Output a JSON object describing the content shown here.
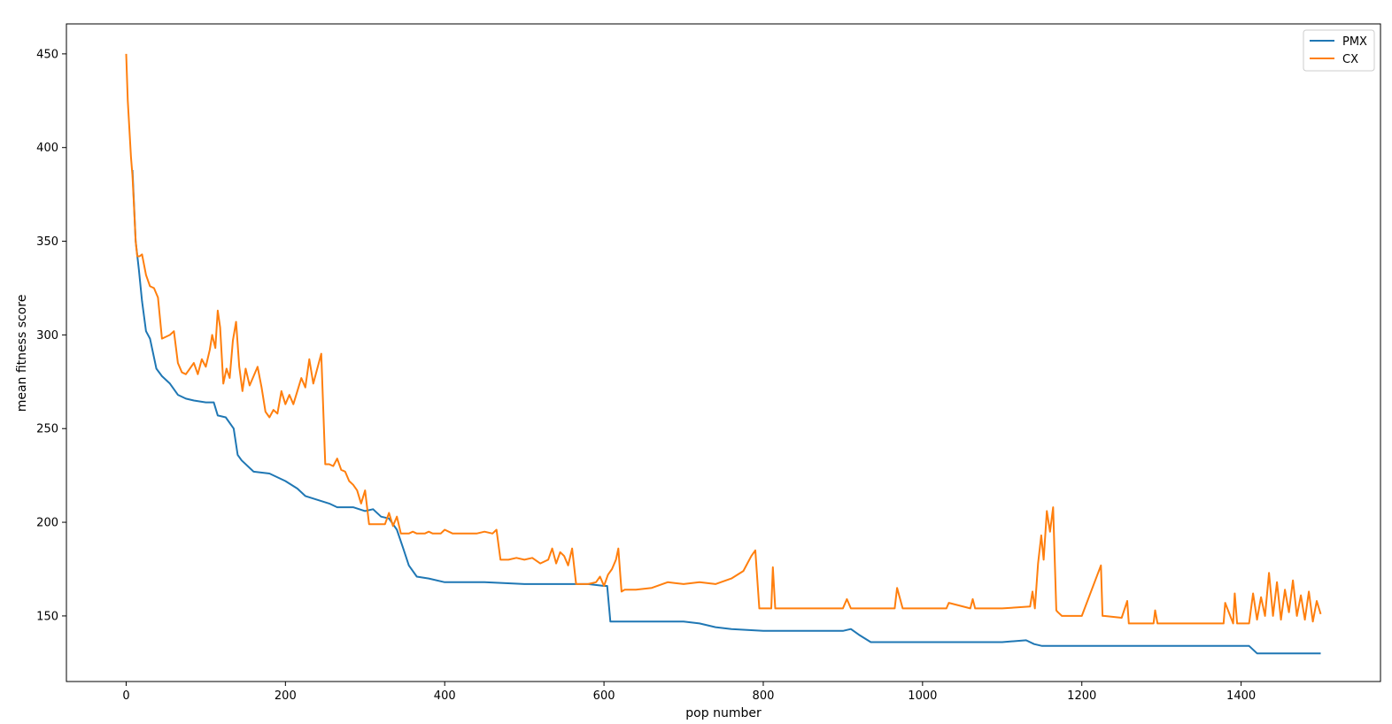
{
  "chart_data": {
    "type": "line",
    "xlabel": "pop number",
    "ylabel": "mean fitness score",
    "xlim": [
      -75,
      1575
    ],
    "ylim": [
      115,
      466
    ],
    "xticks": [
      0,
      200,
      400,
      600,
      800,
      1000,
      1200,
      1400
    ],
    "yticks": [
      150,
      200,
      250,
      300,
      350,
      400,
      450
    ],
    "grid": false,
    "legend": "top-right",
    "colors": {
      "PMX": "#1f77b4",
      "CX": "#ff7f0e"
    },
    "series": [
      {
        "name": "PMX",
        "x": [
          8,
          12,
          16,
          20,
          25,
          30,
          38,
          45,
          55,
          65,
          75,
          85,
          100,
          110,
          115,
          125,
          135,
          140,
          145,
          160,
          180,
          200,
          215,
          225,
          240,
          255,
          265,
          285,
          300,
          310,
          320,
          330,
          340,
          348,
          355,
          365,
          380,
          400,
          450,
          500,
          550,
          580,
          600,
          604,
          608,
          640,
          700,
          720,
          740,
          760,
          800,
          850,
          900,
          910,
          920,
          935,
          950,
          1000,
          1050,
          1100,
          1130,
          1140,
          1150,
          1200,
          1250,
          1300,
          1350,
          1400,
          1410,
          1420,
          1450,
          1500
        ],
        "y": [
          388,
          350,
          335,
          318,
          302,
          298,
          282,
          278,
          274,
          268,
          266,
          265,
          264,
          264,
          257,
          256,
          250,
          236,
          233,
          227,
          226,
          222,
          218,
          214,
          212,
          210,
          208,
          208,
          206,
          207,
          203,
          202,
          196,
          186,
          177,
          171,
          170,
          168,
          168,
          167,
          167,
          167,
          166,
          166,
          147,
          147,
          147,
          146,
          144,
          143,
          142,
          142,
          142,
          143,
          140,
          136,
          136,
          136,
          136,
          136,
          137,
          135,
          134,
          134,
          134,
          134,
          134,
          134,
          134,
          130,
          130,
          130
        ]
      },
      {
        "name": "CX",
        "x": [
          0,
          2,
          4,
          6,
          8,
          10,
          12,
          14,
          17,
          20,
          25,
          30,
          35,
          40,
          45,
          50,
          55,
          60,
          65,
          70,
          75,
          80,
          85,
          90,
          95,
          100,
          105,
          108,
          112,
          115,
          118,
          122,
          126,
          130,
          134,
          138,
          142,
          146,
          150,
          155,
          160,
          165,
          170,
          175,
          180,
          185,
          190,
          195,
          200,
          205,
          210,
          215,
          220,
          225,
          230,
          235,
          240,
          245,
          250,
          255,
          260,
          265,
          270,
          275,
          280,
          285,
          290,
          295,
          300,
          305,
          310,
          315,
          320,
          325,
          330,
          335,
          340,
          345,
          350,
          355,
          360,
          365,
          370,
          375,
          380,
          385,
          390,
          395,
          400,
          410,
          420,
          430,
          440,
          450,
          460,
          465,
          470,
          480,
          490,
          500,
          510,
          520,
          530,
          535,
          540,
          545,
          550,
          555,
          560,
          565,
          570,
          580,
          590,
          595,
          600,
          605,
          610,
          615,
          618,
          622,
          626,
          640,
          660,
          680,
          700,
          720,
          740,
          760,
          775,
          780,
          785,
          790,
          795,
          800,
          810,
          812,
          815,
          820,
          850,
          900,
          905,
          910,
          950,
          965,
          968,
          975,
          1000,
          1030,
          1033,
          1060,
          1063,
          1066,
          1100,
          1135,
          1138,
          1141,
          1145,
          1149,
          1152,
          1156,
          1160,
          1164,
          1168,
          1170,
          1175,
          1200,
          1224,
          1226,
          1228,
          1250,
          1257,
          1259,
          1261,
          1263,
          1290,
          1292,
          1295,
          1350,
          1378,
          1380,
          1390,
          1392,
          1395,
          1410,
          1415,
          1420,
          1425,
          1430,
          1435,
          1440,
          1445,
          1450,
          1455,
          1460,
          1465,
          1470,
          1475,
          1480,
          1485,
          1490,
          1495,
          1500
        ],
        "y": [
          450,
          425,
          410,
          395,
          385,
          368,
          350,
          342,
          342,
          343,
          332,
          326,
          325,
          320,
          298,
          299,
          300,
          302,
          285,
          280,
          279,
          282,
          285,
          279,
          287,
          283,
          292,
          300,
          293,
          313,
          304,
          274,
          282,
          277,
          297,
          307,
          283,
          270,
          282,
          273,
          278,
          283,
          272,
          259,
          256,
          260,
          258,
          270,
          263,
          268,
          263,
          270,
          277,
          272,
          287,
          274,
          282,
          290,
          231,
          231,
          230,
          234,
          228,
          227,
          222,
          220,
          217,
          210,
          217,
          199,
          199,
          199,
          199,
          199,
          205,
          198,
          203,
          194,
          194,
          194,
          195,
          194,
          194,
          194,
          195,
          194,
          194,
          194,
          196,
          194,
          194,
          194,
          194,
          195,
          194,
          196,
          180,
          180,
          181,
          180,
          181,
          178,
          180,
          186,
          178,
          184,
          182,
          177,
          186,
          167,
          167,
          167,
          168,
          171,
          166,
          172,
          175,
          180,
          186,
          163,
          164,
          164,
          165,
          168,
          167,
          168,
          167,
          170,
          174,
          178,
          182,
          185,
          154,
          154,
          154,
          176,
          154,
          154,
          154,
          154,
          159,
          154,
          154,
          154,
          165,
          154,
          154,
          154,
          157,
          154,
          159,
          154,
          154,
          155,
          163,
          154,
          178,
          193,
          180,
          206,
          195,
          208,
          153,
          152,
          150,
          150,
          177,
          150,
          150,
          149,
          158,
          146,
          146,
          146,
          146,
          153,
          146,
          146,
          146,
          157,
          146,
          162,
          146,
          146,
          162,
          148,
          160,
          150,
          173,
          150,
          168,
          148,
          164,
          152,
          169,
          150,
          161,
          148,
          163,
          147,
          158,
          151
        ]
      }
    ]
  }
}
